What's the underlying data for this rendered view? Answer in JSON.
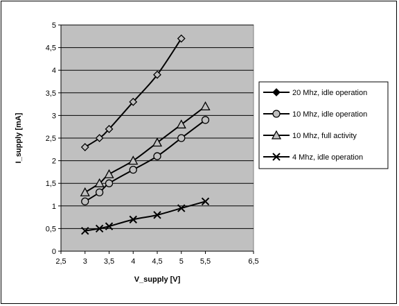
{
  "chart_data": {
    "type": "line",
    "xlabel": "V_supply [V]",
    "ylabel": "I_supply [mA]",
    "xlim": [
      2.5,
      6.5
    ],
    "ylim": [
      0,
      5
    ],
    "x_ticks": [
      "2,5",
      "3",
      "3,5",
      "4",
      "4,5",
      "5",
      "5,5",
      "6,5"
    ],
    "x_tick_values": [
      2.5,
      3,
      3.5,
      4,
      4.5,
      5,
      5.5,
      6.5
    ],
    "y_ticks": [
      "0",
      "0,5",
      "1",
      "1,5",
      "2",
      "2,5",
      "3",
      "3,5",
      "4",
      "4,5",
      "5"
    ],
    "y_tick_values": [
      0,
      0.5,
      1,
      1.5,
      2,
      2.5,
      3,
      3.5,
      4,
      4.5,
      5
    ],
    "grid": "horizontal",
    "legend_position": "right",
    "plot_background": "#c0c0c0",
    "series": [
      {
        "name": "20 Mhz, idle operation",
        "marker": "diamond",
        "x": [
          3,
          3.3,
          3.5,
          4,
          4.5,
          5
        ],
        "y": [
          2.3,
          2.5,
          2.7,
          3.3,
          3.9,
          4.7
        ]
      },
      {
        "name": "10 Mhz, idle operation",
        "marker": "circle",
        "x": [
          3,
          3.3,
          3.5,
          4,
          4.5,
          5,
          5.5
        ],
        "y": [
          1.1,
          1.3,
          1.5,
          1.8,
          2.1,
          2.5,
          2.9
        ]
      },
      {
        "name": "10 Mhz, full activity",
        "marker": "triangle",
        "x": [
          3,
          3.3,
          3.5,
          4,
          4.5,
          5,
          5.5
        ],
        "y": [
          1.3,
          1.5,
          1.7,
          2.0,
          2.4,
          2.8,
          3.2
        ]
      },
      {
        "name": "4 Mhz, idle operation",
        "marker": "x",
        "x": [
          3,
          3.3,
          3.5,
          4,
          4.5,
          5,
          5.5
        ],
        "y": [
          0.45,
          0.5,
          0.55,
          0.7,
          0.8,
          0.95,
          1.1
        ]
      }
    ]
  }
}
